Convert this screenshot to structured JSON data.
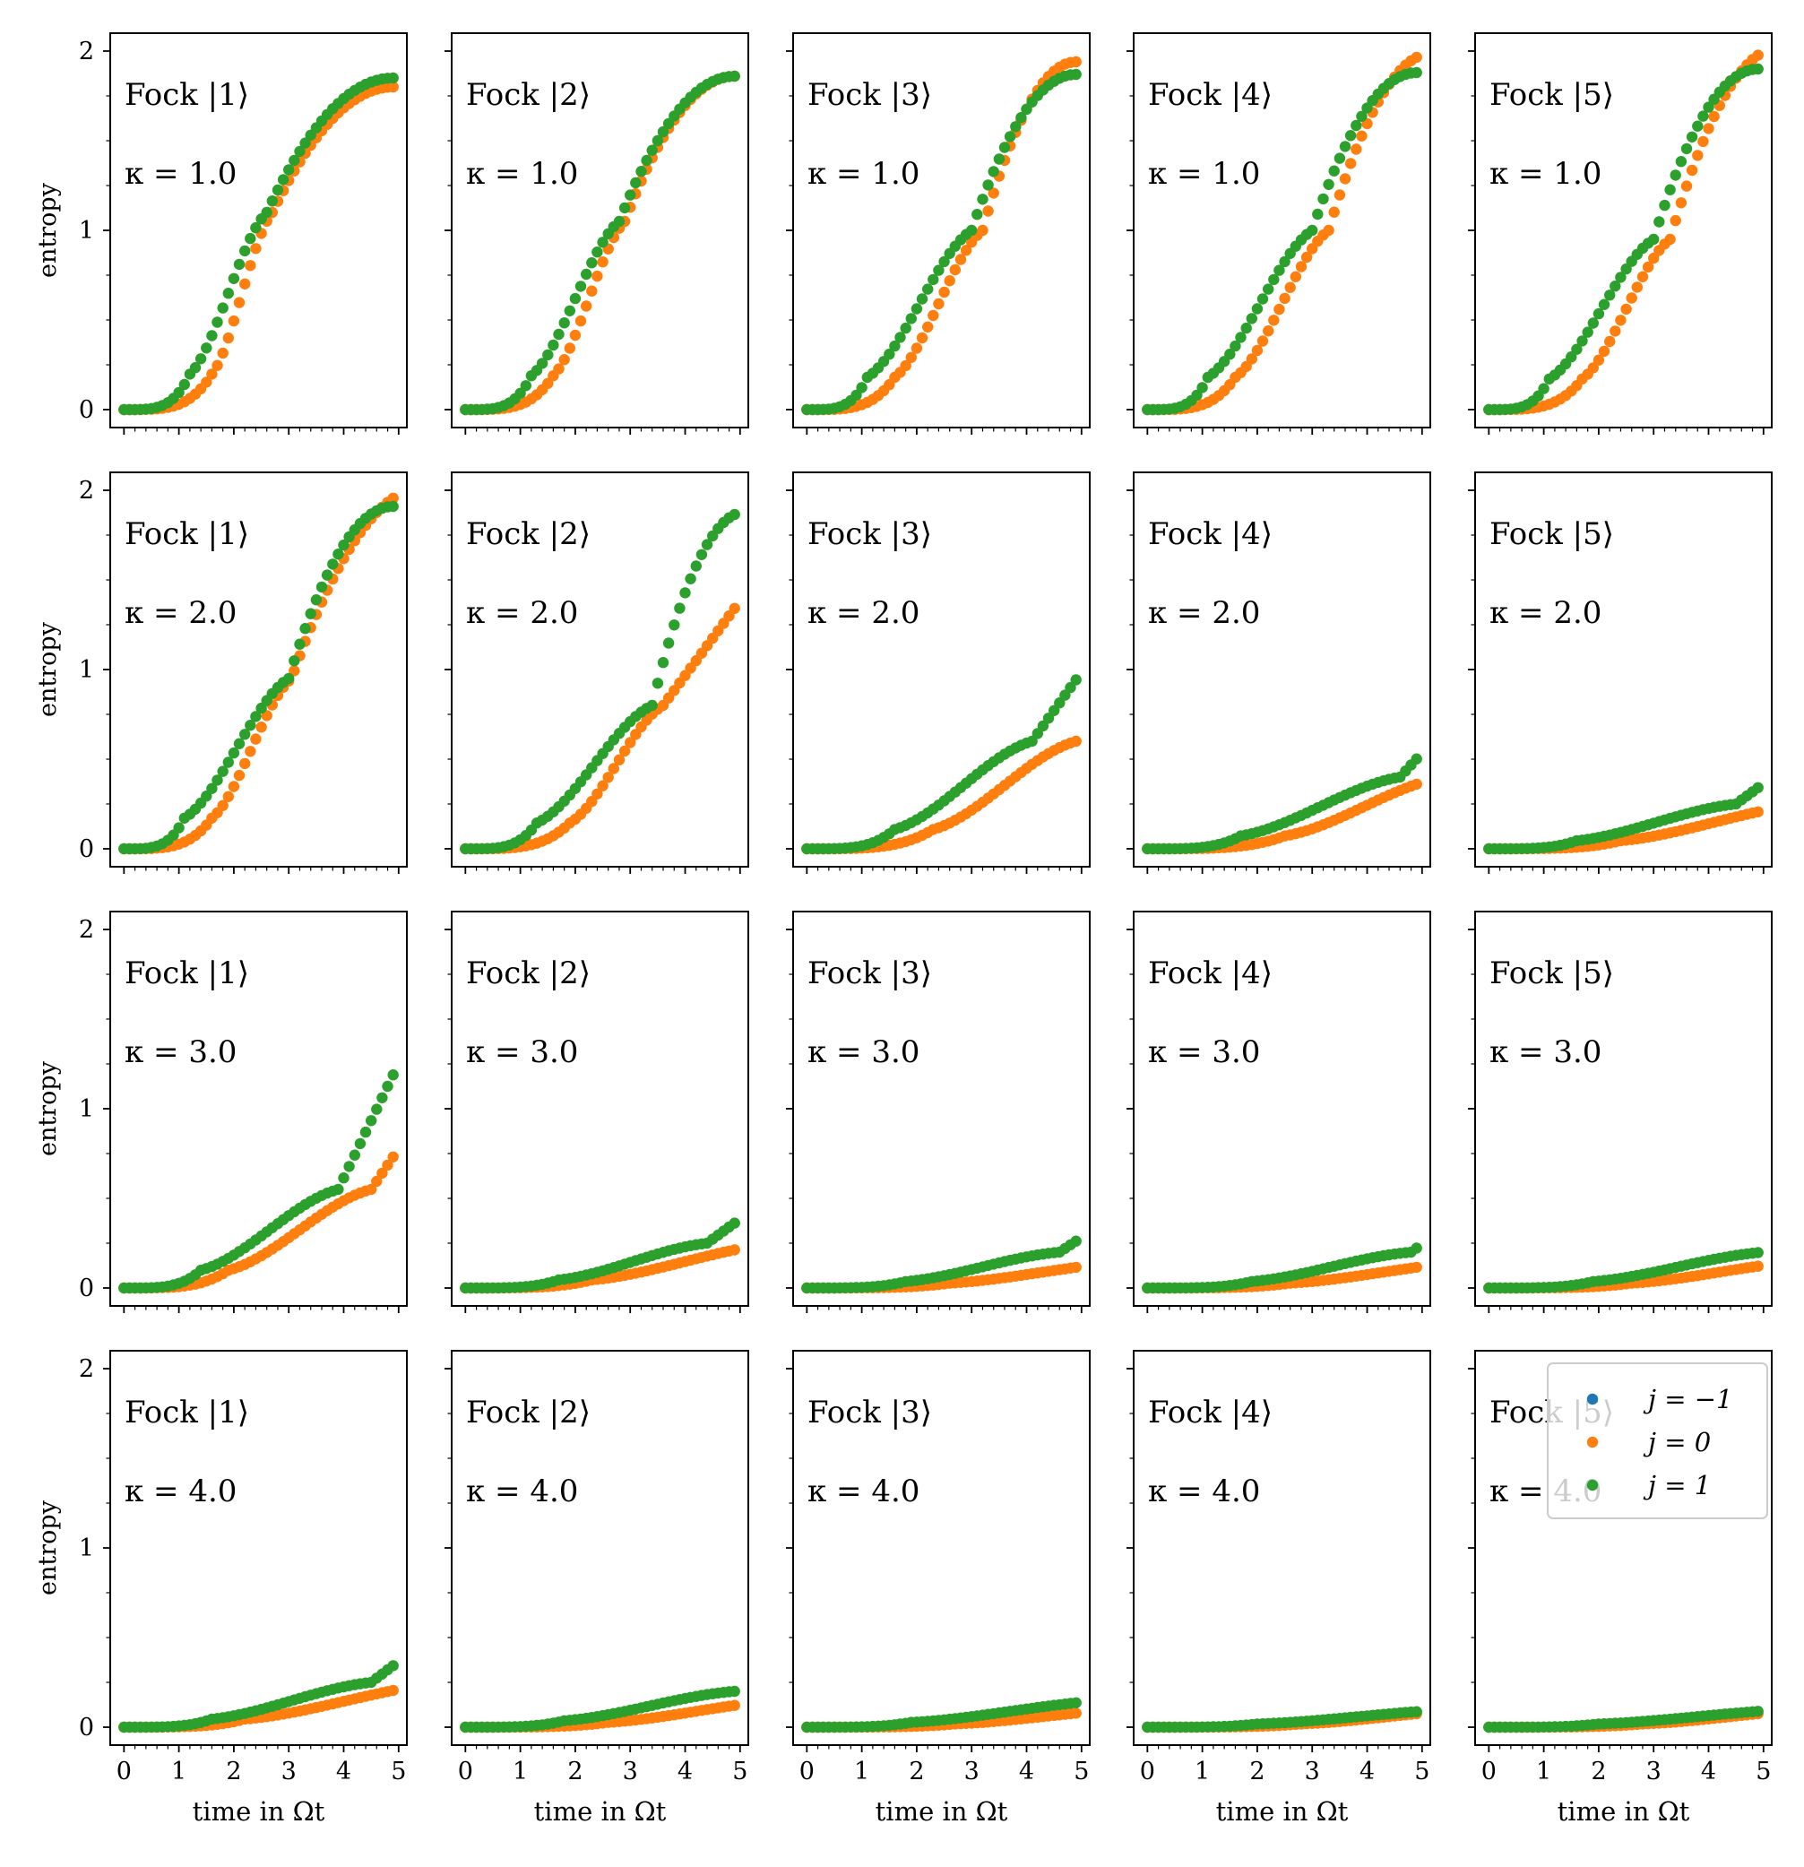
{
  "chart_data": {
    "type": "scatter",
    "grid": {
      "rows": 4,
      "cols": 5
    },
    "x_range": [
      0,
      4.9
    ],
    "n_points": 50,
    "xlim": [
      -0.25,
      5.15
    ],
    "ylim": [
      -0.1,
      2.1
    ],
    "grid_lines": false,
    "xticks": [
      "0",
      "1",
      "2",
      "3",
      "4",
      "5"
    ],
    "yticks": [
      "0",
      "1",
      "2"
    ],
    "xlabel": "time in Ωt",
    "ylabel": "entropy",
    "legend": {
      "placement": "top-right",
      "entries": [
        {
          "name": "j = −1",
          "color": "#1f77b4"
        },
        {
          "name": "j = 0",
          "color": "#ff7f0e"
        },
        {
          "name": "j = 1",
          "color": "#2ca02c"
        }
      ]
    },
    "panels": [
      {
        "fock": "Fock |1⟩",
        "kappa": "κ = 1.0",
        "series": [
          {
            "name": "j = 0",
            "color": "#ff7f0e",
            "shape": [
              0,
              1.6,
              2.7,
              1.1,
              1.8,
              4.3,
              1.8
            ]
          },
          {
            "name": "j = 1",
            "color": "#2ca02c",
            "shape": [
              0,
              1.2,
              2.6,
              1.1,
              1.85,
              3.3,
              1.85
            ]
          }
        ]
      },
      {
        "fock": "Fock |2⟩",
        "kappa": "κ = 1.0",
        "series": [
          {
            "name": "j = 0",
            "color": "#ff7f0e",
            "shape": [
              0,
              1.6,
              2.9,
              1.05,
              1.86,
              4.5,
              1.86
            ]
          },
          {
            "name": "j = 1",
            "color": "#2ca02c",
            "shape": [
              0,
              1.2,
              2.8,
              1.05,
              1.86,
              3.5,
              1.86
            ]
          }
        ]
      },
      {
        "fock": "Fock |3⟩",
        "kappa": "κ = 1.0",
        "series": [
          {
            "name": "j = 0",
            "color": "#ff7f0e",
            "shape": [
              0,
              1.6,
              3.2,
              1.0,
              1.94,
              4.9,
              1.94
            ]
          },
          {
            "name": "j = 1",
            "color": "#2ca02c",
            "shape": [
              0,
              1.1,
              3.0,
              1.0,
              1.87,
              3.8,
              1.87
            ]
          }
        ]
      },
      {
        "fock": "Fock |4⟩",
        "kappa": "κ = 1.0",
        "series": [
          {
            "name": "j = 0",
            "color": "#ff7f0e",
            "shape": [
              0,
              1.6,
              3.3,
              1.0,
              1.99,
              5.2,
              1.99
            ]
          },
          {
            "name": "j = 1",
            "color": "#2ca02c",
            "shape": [
              0,
              1.1,
              3.0,
              1.0,
              1.88,
              4.1,
              1.88
            ]
          }
        ]
      },
      {
        "fock": "Fock |5⟩",
        "kappa": "κ = 1.0",
        "series": [
          {
            "name": "j = 0",
            "color": "#ff7f0e",
            "shape": [
              0,
              1.7,
              3.3,
              0.95,
              2.02,
              5.3,
              2.02
            ]
          },
          {
            "name": "j = 1",
            "color": "#2ca02c",
            "shape": [
              0,
              1.1,
              3.0,
              0.95,
              1.9,
              4.3,
              1.9
            ]
          }
        ]
      },
      {
        "fock": "Fock |1⟩",
        "kappa": "κ = 2.0",
        "series": [
          {
            "name": "j = 0",
            "color": "#ff7f0e",
            "shape": [
              0,
              1.6,
              3.05,
              0.95,
              2.02,
              5.5,
              2.02
            ]
          },
          {
            "name": "j = 1",
            "color": "#2ca02c",
            "shape": [
              0,
              1.1,
              3.0,
              0.95,
              1.91,
              4.4,
              1.91
            ]
          }
        ]
      },
      {
        "fock": "Fock |2⟩",
        "kappa": "κ = 2.0",
        "series": [
          {
            "name": "j = 0",
            "color": "#ff7f0e",
            "shape": [
              0,
              1.9,
              3.6,
              0.8,
              1.84,
              6.1,
              1.84
            ]
          },
          {
            "name": "j = 1",
            "color": "#2ca02c",
            "shape": [
              0,
              1.3,
              3.4,
              0.8,
              1.88,
              5.1,
              1.88
            ]
          }
        ]
      },
      {
        "fock": "Fock |3⟩",
        "kappa": "κ = 2.0",
        "series": [
          {
            "name": "j = 0",
            "color": "#ff7f0e",
            "shape": [
              0,
              2.3,
              4.9,
              0.6,
              1.42,
              8.0,
              1.42
            ]
          },
          {
            "name": "j = 1",
            "color": "#2ca02c",
            "shape": [
              0,
              1.6,
              4.1,
              0.6,
              1.67,
              6.6,
              1.67
            ]
          }
        ]
      },
      {
        "fock": "Fock |4⟩",
        "kappa": "κ = 2.0",
        "series": [
          {
            "name": "j = 0",
            "color": "#ff7f0e",
            "shape": [
              0,
              2.5,
              5.4,
              0.4,
              1.03,
              8.5,
              1.03
            ]
          },
          {
            "name": "j = 1",
            "color": "#2ca02c",
            "shape": [
              0,
              1.7,
              4.6,
              0.4,
              1.38,
              7.5,
              1.38
            ]
          }
        ]
      },
      {
        "fock": "Fock |5⟩",
        "kappa": "κ = 2.0",
        "series": [
          {
            "name": "j = 0",
            "color": "#ff7f0e",
            "shape": [
              0,
              2.4,
              5.8,
              0.25,
              0.77,
              8.5,
              0.77
            ]
          },
          {
            "name": "j = 1",
            "color": "#2ca02c",
            "shape": [
              0,
              1.6,
              4.5,
              0.25,
              1.16,
              8.5,
              1.16
            ]
          }
        ]
      },
      {
        "fock": "Fock |1⟩",
        "kappa": "κ = 3.0",
        "series": [
          {
            "name": "j = 0",
            "color": "#ff7f0e",
            "shape": [
              0,
              1.9,
              4.5,
              0.55,
              1.5,
              6.6,
              1.5
            ]
          },
          {
            "name": "j = 1",
            "color": "#2ca02c",
            "shape": [
              0,
              1.4,
              3.9,
              0.55,
              1.7,
              5.7,
              1.7
            ]
          }
        ]
      },
      {
        "fock": "Fock |2⟩",
        "kappa": "κ = 3.0",
        "series": [
          {
            "name": "j = 0",
            "color": "#ff7f0e",
            "shape": [
              0,
              2.3,
              5.7,
              0.25,
              0.78,
              8.5,
              0.78
            ]
          },
          {
            "name": "j = 1",
            "color": "#2ca02c",
            "shape": [
              0,
              1.7,
              4.4,
              0.25,
              1.17,
              8.5,
              1.17
            ]
          }
        ]
      },
      {
        "fock": "Fock |3⟩",
        "kappa": "κ = 3.0",
        "series": [
          {
            "name": "j = 0",
            "color": "#ff7f0e",
            "shape": [
              0,
              2.6,
              6.0,
              0.15,
              0.57,
              9.0,
              0.57
            ]
          },
          {
            "name": "j = 1",
            "color": "#2ca02c",
            "shape": [
              0,
              1.8,
              4.6,
              0.2,
              1.0,
              8.5,
              1.0
            ]
          }
        ]
      },
      {
        "fock": "Fock |4⟩",
        "kappa": "κ = 3.0",
        "series": [
          {
            "name": "j = 0",
            "color": "#ff7f0e",
            "shape": [
              0,
              2.6,
              6.0,
              0.15,
              0.57,
              9.0,
              0.57
            ]
          },
          {
            "name": "j = 1",
            "color": "#2ca02c",
            "shape": [
              0,
              1.9,
              4.8,
              0.2,
              1.03,
              8.5,
              1.03
            ]
          }
        ]
      },
      {
        "fock": "Fock |5⟩",
        "kappa": "κ = 3.0",
        "series": [
          {
            "name": "j = 0",
            "color": "#ff7f0e",
            "shape": [
              0,
              2.6,
              5.8,
              0.15,
              0.64,
              9.5,
              0.64
            ]
          },
          {
            "name": "j = 1",
            "color": "#2ca02c",
            "shape": [
              0,
              1.9,
              5.0,
              0.2,
              1.11,
              9.0,
              1.11
            ]
          }
        ]
      },
      {
        "fock": "Fock |1⟩",
        "kappa": "κ = 4.0",
        "series": [
          {
            "name": "j = 0",
            "color": "#ff7f0e",
            "shape": [
              0,
              2.2,
              5.9,
              0.25,
              0.81,
              8.5,
              0.81
            ]
          },
          {
            "name": "j = 1",
            "color": "#2ca02c",
            "shape": [
              0,
              1.6,
              4.5,
              0.25,
              1.18,
              8.5,
              1.18
            ]
          }
        ]
      },
      {
        "fock": "Fock |2⟩",
        "kappa": "κ = 4.0",
        "series": [
          {
            "name": "j = 0",
            "color": "#ff7f0e",
            "shape": [
              0,
              2.6,
              5.8,
              0.15,
              0.63,
              9.5,
              0.63
            ]
          },
          {
            "name": "j = 1",
            "color": "#2ca02c",
            "shape": [
              0,
              1.8,
              4.9,
              0.2,
              1.06,
              9.0,
              1.06
            ]
          }
        ]
      },
      {
        "fock": "Fock |3⟩",
        "kappa": "κ = 4.0",
        "series": [
          {
            "name": "j = 0",
            "color": "#ff7f0e",
            "shape": [
              0,
              2.7,
              5.9,
              0.1,
              0.69,
              10.0,
              0.69
            ]
          },
          {
            "name": "j = 1",
            "color": "#2ca02c",
            "shape": [
              0,
              1.9,
              5.5,
              0.15,
              1.16,
              10.0,
              1.16
            ]
          }
        ]
      },
      {
        "fock": "Fock |4⟩",
        "kappa": "κ = 4.0",
        "series": [
          {
            "name": "j = 0",
            "color": "#ff7f0e",
            "shape": [
              0,
              2.8,
              6.0,
              0.1,
              0.7,
              10.0,
              0.7
            ]
          },
          {
            "name": "j = 1",
            "color": "#2ca02c",
            "shape": [
              0,
              2.0,
              5.7,
              0.1,
              1.22,
              10.0,
              1.22
            ]
          }
        ]
      },
      {
        "fock": "Fock |5⟩",
        "kappa": "κ = 4.0",
        "series": [
          {
            "name": "j = 0",
            "color": "#ff7f0e",
            "shape": [
              0,
              2.8,
              6.0,
              0.1,
              0.59,
              10.0,
              0.59
            ]
          },
          {
            "name": "j = 1",
            "color": "#2ca02c",
            "shape": [
              0,
              2.0,
              5.6,
              0.1,
              1.13,
              10.0,
              1.13
            ]
          }
        ]
      }
    ]
  }
}
